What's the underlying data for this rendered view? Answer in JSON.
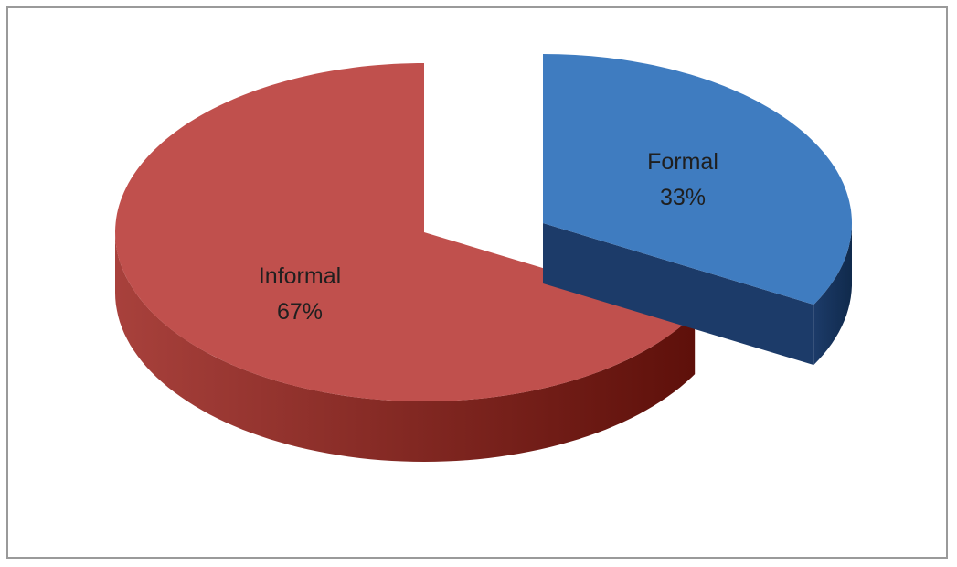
{
  "chart_data": {
    "type": "pie",
    "style": "3d-exploded",
    "title": "",
    "legend": "none",
    "categories": [
      "Informal",
      "Formal"
    ],
    "values": [
      67,
      33
    ],
    "labels": [
      {
        "name": "Informal",
        "percent": "67%"
      },
      {
        "name": "Formal",
        "percent": "33%"
      }
    ],
    "colors": {
      "Informal": {
        "top": "#c0504d",
        "side_dark": "#5e100a",
        "side_light": "#a8413c"
      },
      "Formal": {
        "top": "#3f7cc0",
        "side_dark": "#102a4c",
        "side_light": "#1c3b69"
      }
    },
    "exploded": "Formal"
  }
}
